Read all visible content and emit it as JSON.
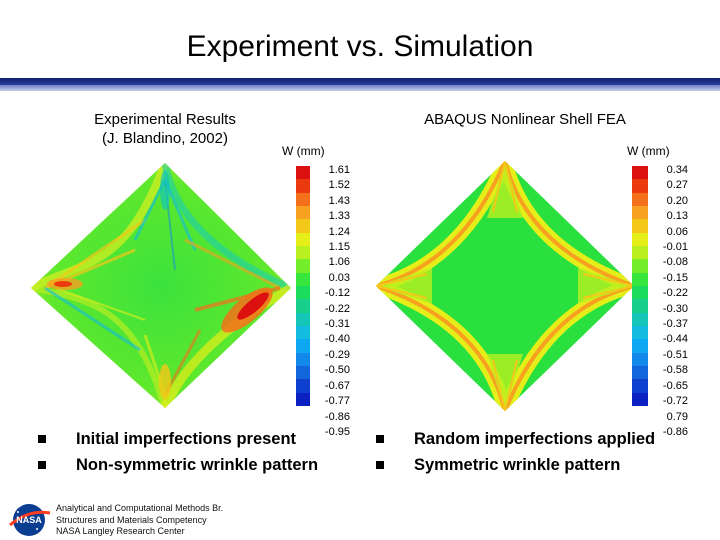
{
  "title": "Experiment vs. Simulation",
  "left_panel": {
    "heading_line1": "Experimental Results",
    "heading_line2": "(J. Blandino, 2002)",
    "unit_label": "W (mm)",
    "scale_values": [
      "1.61",
      "1.52",
      "1.43",
      "1.33",
      "1.24",
      "1.15",
      "1.06",
      "0.03",
      "-0.12",
      "-0.22",
      "-0.31",
      "-0.40",
      "-0.29",
      "-0.50",
      "-0.67",
      "-0.77",
      "-0.86",
      "-0.95"
    ]
  },
  "right_panel": {
    "heading": "ABAQUS Nonlinear Shell FEA",
    "unit_label": "W (mm)",
    "scale_values": [
      "0.34",
      "0.27",
      "0.20",
      "0.13",
      "0.06",
      "-0.01",
      "-0.08",
      "-0.15",
      "-0.22",
      "-0.30",
      "-0.37",
      "-0.44",
      "-0.51",
      "-0.58",
      "-0.65",
      "-0.72",
      "0.79",
      "-0.86"
    ]
  },
  "bullets_left": [
    "Initial imperfections present",
    "Non-symmetric wrinkle pattern"
  ],
  "bullets_right": [
    "Random imperfections applied",
    "Symmetric wrinkle pattern"
  ],
  "footer": {
    "logo_text": "NASA",
    "line1": "Analytical and Computational Methods Br.",
    "line2": "Structures and Materials Competency",
    "line3": "NASA Langley Research Center"
  },
  "colors": {
    "accent_dark": "#0e1d6e",
    "scale": [
      "#dd1010",
      "#ec3a10",
      "#f4701a",
      "#f8a020",
      "#f4c818",
      "#e6ee1a",
      "#b8f020",
      "#74ee2a",
      "#36e63c",
      "#1cdc5c",
      "#18cf8c",
      "#14c6b8",
      "#12bce0",
      "#0ea8f2",
      "#1288ea",
      "#1266dc",
      "#0e40d0",
      "#0a20c2"
    ]
  }
}
